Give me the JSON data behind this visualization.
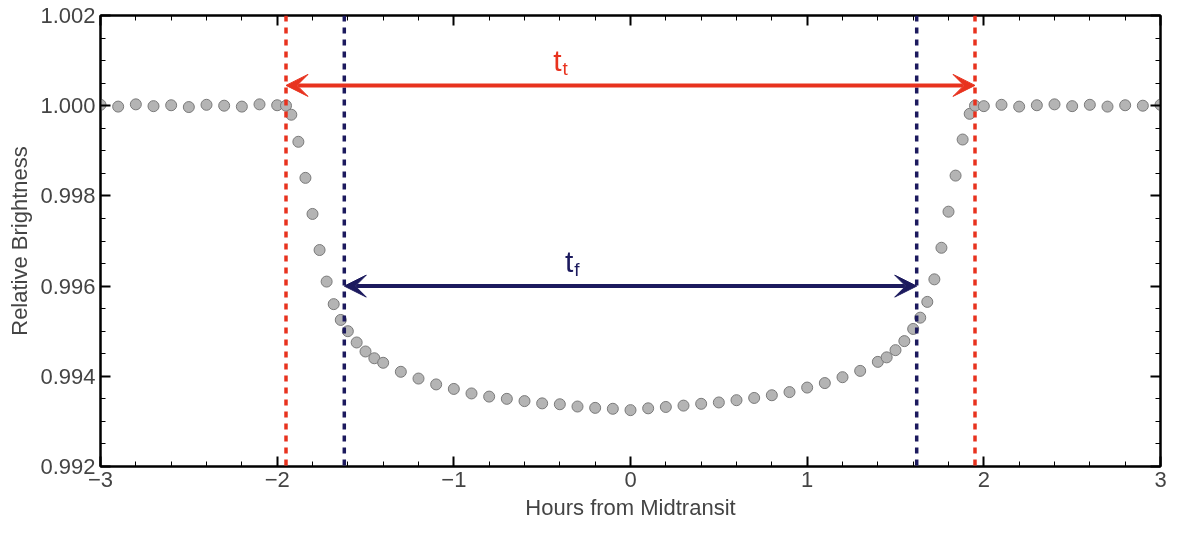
{
  "chart_data": {
    "type": "scatter",
    "xlabel": "Hours from Midtransit",
    "ylabel": "Relative Brightness",
    "x": [
      -3.0,
      -2.9,
      -2.8,
      -2.7,
      -2.6,
      -2.5,
      -2.4,
      -2.3,
      -2.2,
      -2.1,
      -2.0,
      -1.95,
      -1.92,
      -1.88,
      -1.84,
      -1.8,
      -1.76,
      -1.72,
      -1.68,
      -1.64,
      -1.6,
      -1.55,
      -1.5,
      -1.45,
      -1.4,
      -1.3,
      -1.2,
      -1.1,
      -1.0,
      -0.9,
      -0.8,
      -0.7,
      -0.6,
      -0.5,
      -0.4,
      -0.3,
      -0.2,
      -0.1,
      0.0,
      0.1,
      0.2,
      0.3,
      0.4,
      0.5,
      0.6,
      0.7,
      0.8,
      0.9,
      1.0,
      1.1,
      1.2,
      1.3,
      1.4,
      1.45,
      1.5,
      1.55,
      1.6,
      1.64,
      1.68,
      1.72,
      1.76,
      1.8,
      1.84,
      1.88,
      1.92,
      1.95,
      2.0,
      2.1,
      2.2,
      2.3,
      2.4,
      2.5,
      2.6,
      2.7,
      2.8,
      2.9,
      3.0
    ],
    "series": [
      {
        "color": "#b4b4b4",
        "values": [
          1.00002,
          0.99998,
          1.00003,
          0.99999,
          1.00001,
          0.99997,
          1.00002,
          1.0,
          0.99998,
          1.00003,
          1.00001,
          1.0,
          0.9998,
          0.9992,
          0.9984,
          0.9976,
          0.9968,
          0.9961,
          0.9956,
          0.99525,
          0.995,
          0.99475,
          0.99455,
          0.9944,
          0.9943,
          0.9941,
          0.99395,
          0.99382,
          0.99372,
          0.99362,
          0.99355,
          0.9935,
          0.99345,
          0.9934,
          0.99338,
          0.99333,
          0.9933,
          0.99328,
          0.99325,
          0.99329,
          0.99332,
          0.99335,
          0.99339,
          0.99342,
          0.99347,
          0.99352,
          0.99358,
          0.99365,
          0.99375,
          0.99385,
          0.99398,
          0.99412,
          0.99432,
          0.99442,
          0.99458,
          0.99478,
          0.99505,
          0.9953,
          0.99565,
          0.99615,
          0.99685,
          0.99765,
          0.99845,
          0.99925,
          0.99982,
          1.0,
          0.99999,
          1.00002,
          0.99998,
          1.00001,
          1.00003,
          0.99999,
          1.00002,
          0.99998,
          1.00001,
          1.0,
          1.00002
        ]
      }
    ],
    "marker": "circle",
    "xlim": [
      -3,
      3
    ],
    "ylim": [
      0.992,
      1.002
    ],
    "xticks": [
      {
        "value": -3,
        "label": "−3"
      },
      {
        "value": -2,
        "label": "−2"
      },
      {
        "value": -1,
        "label": "−1"
      },
      0,
      1,
      2,
      3
    ],
    "yticks": [
      0.992,
      0.994,
      0.996,
      0.998,
      {
        "value": 1,
        "label": "1.000"
      },
      1.002
    ],
    "grid": false,
    "ref_lines": [
      {
        "axis": "x",
        "value": -1.95,
        "label": null,
        "color": "#e8321e",
        "line_style": "dashed"
      },
      {
        "axis": "x",
        "value": 1.95,
        "label": null,
        "color": "#e8321e",
        "line_style": "dashed"
      },
      {
        "axis": "x",
        "value": -1.62,
        "label": null,
        "color": "#1c1a5e",
        "line_style": "dashed"
      },
      {
        "axis": "x",
        "value": 1.62,
        "label": null,
        "color": "#1c1a5e",
        "line_style": "dashed"
      }
    ],
    "annotations": [
      "t$_{t}$",
      "t$_{f}$"
    ]
  }
}
